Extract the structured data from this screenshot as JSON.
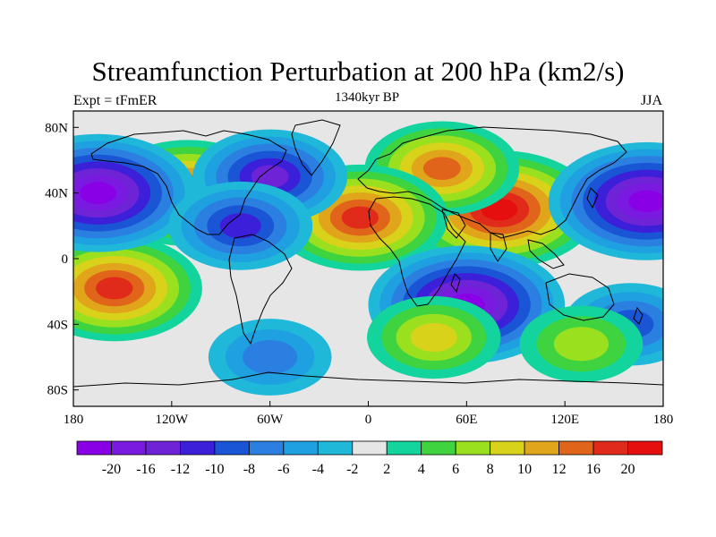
{
  "header": {
    "title": "Streamfunction Perturbation at 200 hPa (km2/s)",
    "left_label": "Expt = tFmER",
    "center_label": "1340kyr BP",
    "right_label": "JJA"
  },
  "map": {
    "lon_range": [
      -180,
      180
    ],
    "lat_range": [
      -90,
      90
    ],
    "x_ticks": [
      "180",
      "120W",
      "60W",
      "0",
      "60E",
      "120E",
      "180"
    ],
    "y_ticks": [
      "80N",
      "40N",
      "0",
      "40S",
      "80S"
    ],
    "x_tick_values": [
      -180,
      -120,
      -60,
      0,
      60,
      120,
      180
    ],
    "y_tick_values": [
      80,
      40,
      0,
      -40,
      -80
    ],
    "background_color": "#e6e6e6"
  },
  "colorbar": {
    "colors": [
      "#8a00e6",
      "#7a1ae0",
      "#6f23d6",
      "#3b1fd9",
      "#1a55d6",
      "#2b7fe0",
      "#1fa0e0",
      "#20b8d8",
      "#e6e6e6",
      "#12d49c",
      "#3fd43f",
      "#9be01f",
      "#d9d21a",
      "#e0a51a",
      "#e0641a",
      "#e02a1a",
      "#e60f0f"
    ],
    "labels": [
      "-20",
      "-16",
      "-12",
      "-10",
      "-8",
      "-6",
      "-4",
      "-2",
      "2",
      "4",
      "6",
      "8",
      "10",
      "12",
      "16",
      "20"
    ]
  },
  "chart_data": {
    "type": "heatmap",
    "title": "Streamfunction Perturbation at 200 hPa (km2/s)",
    "units": "km2/s",
    "levels": [
      -20,
      -16,
      -12,
      -10,
      -8,
      -6,
      -4,
      -2,
      2,
      4,
      6,
      8,
      10,
      12,
      16,
      20
    ],
    "blobs": [
      {
        "lon": 80,
        "lat": 30,
        "value": 20
      },
      {
        "lon": 45,
        "lat": 55,
        "value": 12
      },
      {
        "lon": -155,
        "lat": -18,
        "value": 16
      },
      {
        "lon": -110,
        "lat": 40,
        "value": 16
      },
      {
        "lon": -5,
        "lat": 25,
        "value": 16
      },
      {
        "lon": -165,
        "lat": 40,
        "value": -20
      },
      {
        "lon": 170,
        "lat": 35,
        "value": -20
      },
      {
        "lon": 60,
        "lat": -28,
        "value": -20
      },
      {
        "lon": -60,
        "lat": 50,
        "value": -12
      },
      {
        "lon": -78,
        "lat": 20,
        "value": -10
      },
      {
        "lon": 160,
        "lat": -40,
        "value": -8
      },
      {
        "lon": -60,
        "lat": -60,
        "value": -6
      },
      {
        "lon": 40,
        "lat": -48,
        "value": 8
      },
      {
        "lon": 130,
        "lat": -52,
        "value": 6
      }
    ]
  }
}
